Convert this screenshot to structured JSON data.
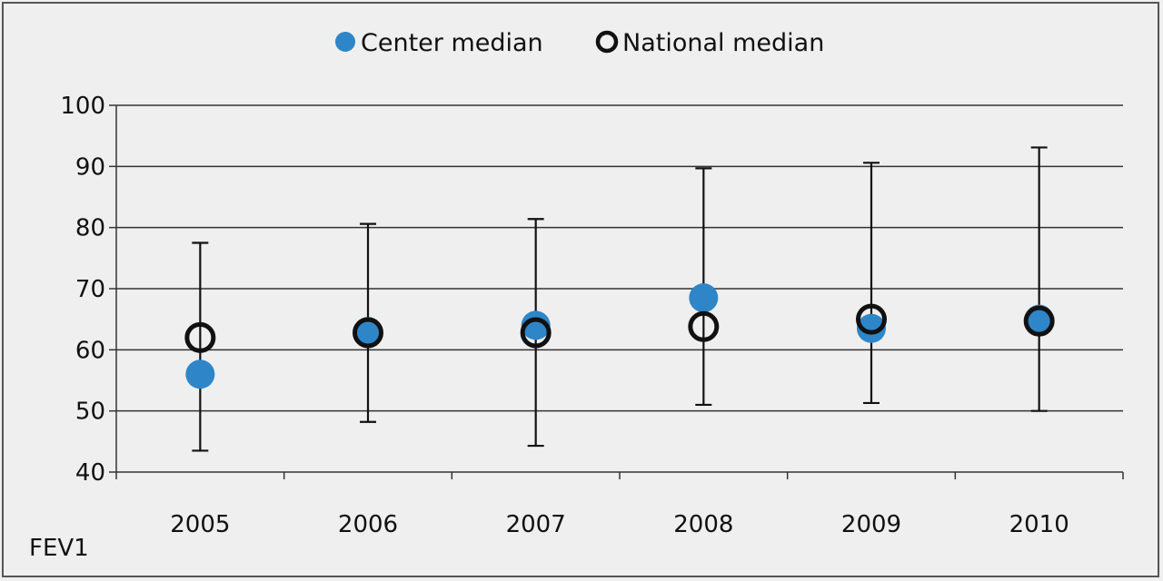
{
  "chart_data": {
    "type": "scatter",
    "title": "",
    "xlabel": "",
    "ylabel": "FEV1",
    "categories": [
      "2005",
      "2006",
      "2007",
      "2008",
      "2009",
      "2010"
    ],
    "ylim": [
      40,
      100
    ],
    "yticks": [
      40,
      50,
      60,
      70,
      80,
      90,
      100
    ],
    "grid": true,
    "legend_position": "top-center",
    "series": [
      {
        "name": "Center median",
        "marker": "filled-circle",
        "color": "#2e86c8",
        "values": [
          56,
          63,
          64,
          68.5,
          63.5,
          65
        ]
      },
      {
        "name": "National median",
        "marker": "open-circle",
        "color": "#111111",
        "values": [
          62,
          62.8,
          62.8,
          63.8,
          65,
          64.7
        ]
      }
    ],
    "error_bars": {
      "low": [
        43.5,
        48.2,
        44.3,
        51,
        51.3,
        50
      ],
      "high": [
        77.5,
        80.6,
        81.4,
        89.7,
        90.6,
        93.1
      ]
    }
  }
}
